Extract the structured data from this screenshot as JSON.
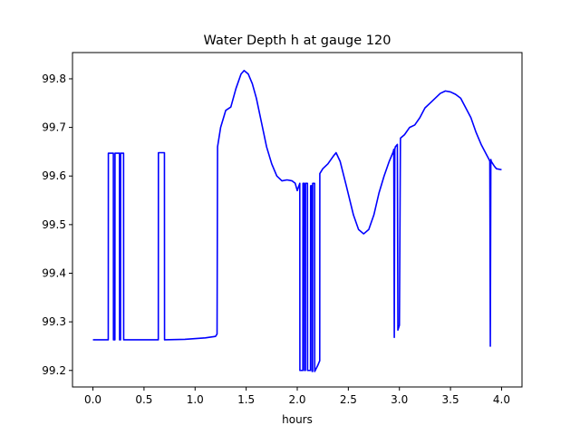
{
  "chart_data": {
    "type": "line",
    "title": "Water Depth h at gauge 120",
    "xlabel": "hours",
    "ylabel": "",
    "xlim": [
      -0.2,
      4.2
    ],
    "ylim": [
      99.166,
      99.854
    ],
    "xticks": [
      0.0,
      0.5,
      1.0,
      1.5,
      2.0,
      2.5,
      3.0,
      3.5,
      4.0
    ],
    "xtick_labels": [
      "0.0",
      "0.5",
      "1.0",
      "1.5",
      "2.0",
      "2.5",
      "3.0",
      "3.5",
      "4.0"
    ],
    "yticks": [
      99.2,
      99.3,
      99.4,
      99.5,
      99.6,
      99.7,
      99.8
    ],
    "ytick_labels": [
      "99.2",
      "99.3",
      "99.4",
      "99.5",
      "99.6",
      "99.7",
      "99.8"
    ],
    "grid": false,
    "series": [
      {
        "color": "#0000ff",
        "x": [
          0.0,
          0.15,
          0.151,
          0.2,
          0.201,
          0.215,
          0.216,
          0.26,
          0.261,
          0.27,
          0.271,
          0.3,
          0.301,
          0.31,
          0.311,
          0.64,
          0.641,
          0.7,
          0.701,
          0.9,
          1.1,
          1.2,
          1.215,
          1.22,
          1.25,
          1.3,
          1.35,
          1.4,
          1.45,
          1.48,
          1.52,
          1.56,
          1.6,
          1.65,
          1.7,
          1.75,
          1.8,
          1.85,
          1.9,
          1.95,
          1.98,
          2.0,
          2.025,
          2.026,
          2.055,
          2.056,
          2.07,
          2.071,
          2.08,
          2.081,
          2.1,
          2.101,
          2.13,
          2.131,
          2.145,
          2.146,
          2.15,
          2.151,
          2.17,
          2.171,
          2.2,
          2.22,
          2.221,
          2.25,
          2.3,
          2.35,
          2.38,
          2.42,
          2.48,
          2.55,
          2.6,
          2.65,
          2.7,
          2.75,
          2.8,
          2.85,
          2.9,
          2.94,
          2.945,
          2.95,
          2.955,
          2.96,
          2.98,
          2.985,
          3.0,
          3.01,
          3.011,
          3.05,
          3.1,
          3.15,
          3.2,
          3.25,
          3.3,
          3.35,
          3.4,
          3.45,
          3.5,
          3.55,
          3.6,
          3.65,
          3.7,
          3.75,
          3.8,
          3.85,
          3.88,
          3.885,
          3.89,
          3.895,
          3.9,
          3.93,
          3.95,
          4.0
        ],
        "values": [
          99.263,
          99.263,
          99.647,
          99.647,
          99.263,
          99.263,
          99.647,
          99.647,
          99.263,
          99.263,
          99.647,
          99.647,
          99.263,
          99.263,
          99.263,
          99.263,
          99.648,
          99.648,
          99.263,
          99.264,
          99.267,
          99.27,
          99.275,
          99.66,
          99.7,
          99.735,
          99.742,
          99.78,
          99.81,
          99.817,
          99.81,
          99.79,
          99.76,
          99.71,
          99.66,
          99.625,
          99.6,
          99.59,
          99.592,
          99.59,
          99.585,
          99.57,
          99.585,
          99.2,
          99.2,
          99.585,
          99.585,
          99.2,
          99.2,
          99.585,
          99.585,
          99.2,
          99.2,
          99.58,
          99.58,
          99.198,
          99.198,
          99.585,
          99.585,
          99.198,
          99.21,
          99.22,
          99.605,
          99.615,
          99.625,
          99.64,
          99.648,
          99.63,
          99.58,
          99.52,
          99.49,
          99.481,
          99.49,
          99.52,
          99.565,
          99.6,
          99.63,
          99.65,
          99.655,
          99.268,
          99.655,
          99.66,
          99.665,
          99.283,
          99.293,
          99.672,
          99.678,
          99.685,
          99.7,
          99.705,
          99.72,
          99.74,
          99.75,
          99.76,
          99.77,
          99.775,
          99.773,
          99.768,
          99.76,
          99.74,
          99.72,
          99.69,
          99.665,
          99.645,
          99.633,
          99.63,
          99.25,
          99.634,
          99.63,
          99.62,
          99.615,
          99.613
        ]
      }
    ]
  }
}
